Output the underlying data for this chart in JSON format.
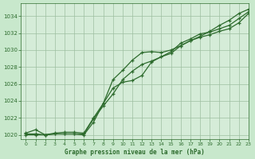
{
  "title": "Graphe pression niveau de la mer (hPa)",
  "background_color": "#c8e8cc",
  "plot_bg_color": "#d5ecd8",
  "grid_color": "#9dbfa0",
  "line_color": "#2d6b2d",
  "xlim": [
    -0.5,
    23
  ],
  "ylim": [
    1019.5,
    1035.5
  ],
  "yticks": [
    1020,
    1022,
    1024,
    1026,
    1028,
    1030,
    1032,
    1034
  ],
  "xticks": [
    0,
    1,
    2,
    3,
    4,
    5,
    6,
    7,
    8,
    9,
    10,
    11,
    12,
    13,
    14,
    15,
    16,
    17,
    18,
    19,
    20,
    21,
    22,
    23
  ],
  "series1_x": [
    0,
    1,
    2,
    3,
    4,
    5,
    6,
    7,
    8,
    9,
    10,
    11,
    12,
    13,
    14,
    15,
    16,
    17,
    18,
    19,
    20,
    21,
    22,
    23
  ],
  "series1_y": [
    1020.2,
    1020.6,
    1020.0,
    1020.2,
    1020.3,
    1020.3,
    1020.2,
    1022.0,
    1023.7,
    1026.5,
    1027.6,
    1028.8,
    1029.7,
    1029.8,
    1029.7,
    1030.0,
    1030.5,
    1031.1,
    1031.6,
    1032.2,
    1032.9,
    1033.5,
    1034.3,
    1034.8
  ],
  "series2_x": [
    0,
    1,
    2,
    3,
    4,
    5,
    6,
    7,
    8,
    9,
    10,
    11,
    12,
    13,
    14,
    15,
    16,
    17,
    18,
    19,
    20,
    21,
    22,
    23
  ],
  "series2_y": [
    1020.1,
    1020.1,
    1020.0,
    1020.1,
    1020.1,
    1020.1,
    1020.1,
    1021.9,
    1023.4,
    1024.8,
    1026.5,
    1027.5,
    1028.3,
    1028.7,
    1029.2,
    1029.8,
    1030.8,
    1031.3,
    1031.9,
    1032.1,
    1032.5,
    1032.9,
    1033.7,
    1034.5
  ],
  "series3_x": [
    0,
    1,
    2,
    3,
    4,
    5,
    6,
    7,
    8,
    9,
    10,
    11,
    12,
    13,
    14,
    15,
    16,
    17,
    18,
    19,
    20,
    21,
    22,
    23
  ],
  "series3_y": [
    1020.0,
    1020.0,
    1020.0,
    1020.1,
    1020.1,
    1020.1,
    1020.0,
    1021.5,
    1023.7,
    1025.5,
    1026.2,
    1026.4,
    1027.0,
    1028.6,
    1029.2,
    1029.6,
    1030.5,
    1031.1,
    1031.5,
    1031.8,
    1032.2,
    1032.5,
    1033.2,
    1034.3
  ]
}
